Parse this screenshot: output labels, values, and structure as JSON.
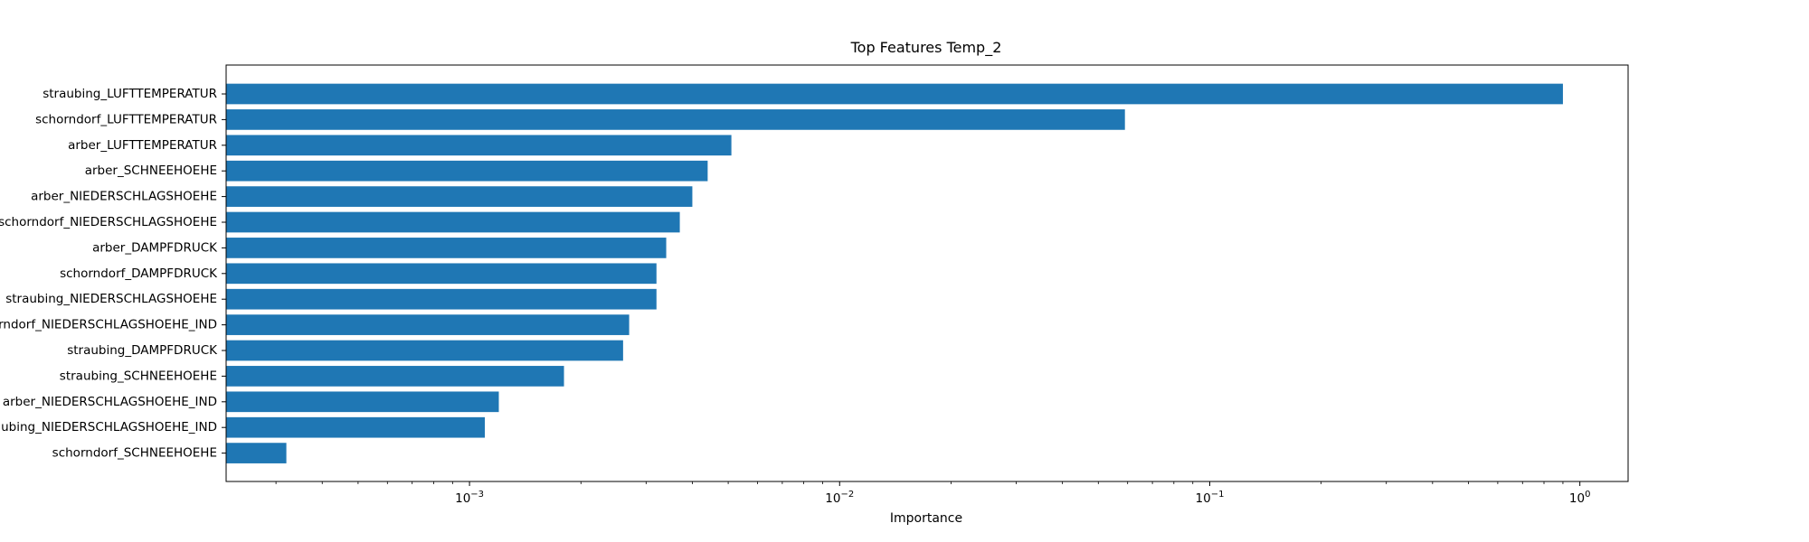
{
  "chart_data": {
    "type": "bar",
    "orientation": "horizontal",
    "title": "Top Features Temp_2",
    "xlabel": "Importance",
    "ylabel": "",
    "x_scale": "log",
    "xlim": [
      0.00022,
      1.35
    ],
    "x_ticks": [
      {
        "value": 0.001,
        "base": "10",
        "exp": "−3"
      },
      {
        "value": 0.01,
        "base": "10",
        "exp": "−2"
      },
      {
        "value": 0.1,
        "base": "10",
        "exp": "−1"
      },
      {
        "value": 1,
        "base": "10",
        "exp": "0"
      }
    ],
    "grid": false,
    "legend": "none",
    "bar_color": "#1f77b4",
    "categories": [
      "straubing_LUFTTEMPERATUR",
      "schorndorf_LUFTTEMPERATUR",
      "arber_LUFTTEMPERATUR",
      "arber_SCHNEEHOEHE",
      "arber_NIEDERSCHLAGSHOEHE",
      "schorndorf_NIEDERSCHLAGSHOEHE",
      "arber_DAMPFDRUCK",
      "schorndorf_DAMPFDRUCK",
      "straubing_NIEDERSCHLAGSHOEHE",
      "schorndorf_NIEDERSCHLAGSHOEHE_IND",
      "straubing_DAMPFDRUCK",
      "straubing_SCHNEEHOEHE",
      "arber_NIEDERSCHLAGSHOEHE_IND",
      "straubing_NIEDERSCHLAGSHOEHE_IND",
      "schorndorf_SCHNEEHOEHE"
    ],
    "values": [
      0.9,
      0.059,
      0.0051,
      0.0044,
      0.004,
      0.0037,
      0.0034,
      0.0032,
      0.0032,
      0.0027,
      0.0026,
      0.0018,
      0.0012,
      0.0011,
      0.00032
    ]
  }
}
